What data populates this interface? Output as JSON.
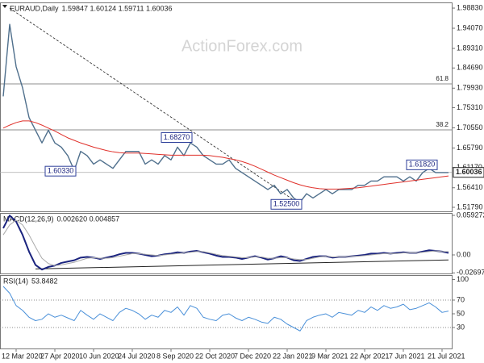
{
  "chart_data": [
    {
      "type": "line",
      "title": "EURAUD,Daily",
      "quote": "1.59847 1.60124 1.59711 1.60036",
      "watermark": "ActionForex.com",
      "categories": [
        null,
        null,
        "12 Mar 2020",
        null,
        null,
        null,
        null,
        null,
        "27 Apr 2020",
        null,
        null,
        null,
        null,
        null,
        "10 Jun 2020",
        null,
        null,
        null,
        null,
        null,
        "24 Jul 2020",
        null,
        null,
        null,
        null,
        null,
        "8 Sep 2020",
        null,
        null,
        null,
        null,
        null,
        "22 Oct 2020",
        null,
        null,
        null,
        null,
        null,
        "7 Dec 2020",
        null,
        null,
        null,
        null,
        null,
        "22 Jan 2021",
        null,
        null,
        null,
        null,
        null,
        "9 Mar 2021",
        null,
        null,
        null,
        null,
        null,
        "22 Apr 2021",
        null,
        null,
        null,
        null,
        null,
        "7 Jun 2021",
        null,
        null,
        null,
        null,
        null,
        "21 Jul 2021",
        null
      ],
      "series": [
        {
          "color": "#4f6f8c",
          "values": [
            1.78,
            1.95,
            1.85,
            1.8,
            1.73,
            1.7,
            1.67,
            1.7,
            1.67,
            1.66,
            1.64,
            1.605,
            1.65,
            1.64,
            1.62,
            1.63,
            1.62,
            1.61,
            1.63,
            1.65,
            1.65,
            1.65,
            1.62,
            1.63,
            1.62,
            1.64,
            1.63,
            1.66,
            1.64,
            1.67,
            1.66,
            1.64,
            1.63,
            1.62,
            1.62,
            1.63,
            1.61,
            1.6,
            1.59,
            1.58,
            1.57,
            1.56,
            1.57,
            1.55,
            1.56,
            1.54,
            1.53,
            1.55,
            1.54,
            1.55,
            1.56,
            1.55,
            1.56,
            1.56,
            1.56,
            1.57,
            1.57,
            1.58,
            1.58,
            1.59,
            1.59,
            1.59,
            1.58,
            1.59,
            1.58,
            1.6,
            1.61,
            1.6,
            1.6,
            1.6
          ]
        },
        {
          "color": "#e0302a",
          "values": [
            1.705,
            1.712,
            1.718,
            1.722,
            1.722,
            1.718,
            1.712,
            1.705,
            1.698,
            1.69,
            1.682,
            1.676,
            1.67,
            1.665,
            1.66,
            1.656,
            1.652,
            1.649,
            1.647,
            1.646,
            1.646,
            1.646,
            1.645,
            1.644,
            1.643,
            1.642,
            1.641,
            1.641,
            1.641,
            1.641,
            1.641,
            1.641,
            1.64,
            1.638,
            1.636,
            1.633,
            1.63,
            1.626,
            1.621,
            1.615,
            1.608,
            1.601,
            1.594,
            1.588,
            1.582,
            1.576,
            1.571,
            1.567,
            1.564,
            1.562,
            1.561,
            1.561,
            1.561,
            1.562,
            1.563,
            1.564,
            1.566,
            1.568,
            1.57,
            1.572,
            1.574,
            1.576,
            1.578,
            1.58,
            1.582,
            1.584,
            1.586,
            1.588,
            1.59,
            1.592
          ]
        }
      ],
      "ylim": [
        1.5084,
        2.0017
      ],
      "yticks": [
        {
          "value": 1.9883,
          "label": "1.98830"
        },
        {
          "value": 1.9407,
          "label": "1.94070"
        },
        {
          "value": 1.8931,
          "label": "1.89310"
        },
        {
          "value": 1.8469,
          "label": "1.84690"
        },
        {
          "value": 1.7993,
          "label": "1.79930"
        },
        {
          "value": 1.7531,
          "label": "1.75310"
        },
        {
          "value": 1.7055,
          "label": "1.70550"
        },
        {
          "value": 1.6579,
          "label": "1.65790"
        },
        {
          "value": 1.6117,
          "label": "1.61170"
        },
        {
          "value": 1.5641,
          "label": "1.56410"
        },
        {
          "value": 1.5179,
          "label": "1.51790"
        }
      ],
      "hlines": [
        {
          "value": 1.8093,
          "label": "61.8"
        },
        {
          "value": 1.7007,
          "label": "38.2"
        }
      ],
      "current": {
        "value": 1.60036,
        "label": "1.60036"
      },
      "trendline": [
        [
          1,
          1.988
        ],
        [
          46,
          1.525
        ]
      ],
      "annotations": [
        {
          "index": 29,
          "value": 1.6827,
          "label": "1.68270"
        },
        {
          "index": 11,
          "value": 1.6033,
          "label": "1.60330"
        },
        {
          "index": 46,
          "value": 1.525,
          "label": "1.52500"
        },
        {
          "index": 67,
          "value": 1.6182,
          "label": "1.61820"
        }
      ]
    },
    {
      "type": "line",
      "title": "MACD(12,26,9)",
      "quote": "0.002620 0.004857",
      "series": [
        {
          "color": "#1a237e",
          "values": [
            0.04,
            0.059,
            0.05,
            0.03,
            0.005,
            -0.015,
            -0.022,
            -0.018,
            -0.016,
            -0.012,
            -0.01,
            -0.008,
            -0.004,
            -0.003,
            -0.004,
            -0.006,
            -0.004,
            -0.002,
            0.001,
            0.003,
            0.003,
            0.002,
            0.0,
            -0.002,
            -0.001,
            0.001,
            0.002,
            0.004,
            0.003,
            0.005,
            0.006,
            0.004,
            0.002,
            -0.001,
            -0.003,
            -0.003,
            -0.004,
            -0.006,
            -0.004,
            -0.002,
            -0.004,
            -0.007,
            -0.005,
            -0.002,
            -0.004,
            -0.008,
            -0.009,
            -0.006,
            -0.003,
            -0.002,
            -0.002,
            -0.004,
            -0.003,
            -0.003,
            -0.002,
            -0.001,
            0.0,
            0.002,
            0.002,
            0.003,
            0.002,
            0.003,
            0.004,
            0.003,
            0.003,
            0.005,
            0.007,
            0.006,
            0.005,
            0.003
          ]
        },
        {
          "color": "#aaaaaa",
          "values": [
            0.03,
            0.045,
            0.052,
            0.045,
            0.03,
            0.012,
            -0.005,
            -0.013,
            -0.016,
            -0.015,
            -0.013,
            -0.011,
            -0.008,
            -0.005,
            -0.004,
            -0.005,
            -0.005,
            -0.004,
            -0.002,
            0.0,
            0.002,
            0.002,
            0.001,
            0.0,
            -0.001,
            0.0,
            0.001,
            0.002,
            0.003,
            0.004,
            0.005,
            0.005,
            0.003,
            0.001,
            -0.001,
            -0.002,
            -0.003,
            -0.004,
            -0.004,
            -0.003,
            -0.003,
            -0.005,
            -0.005,
            -0.004,
            -0.004,
            -0.006,
            -0.007,
            -0.007,
            -0.005,
            -0.003,
            -0.002,
            -0.003,
            -0.003,
            -0.003,
            -0.002,
            -0.002,
            -0.001,
            0.0,
            0.001,
            0.002,
            0.002,
            0.002,
            0.003,
            0.003,
            0.003,
            0.004,
            0.005,
            0.006,
            0.005,
            0.005
          ]
        }
      ],
      "ylim": [
        -0.0278,
        0.0629
      ],
      "yticks": [
        0.059272,
        {
          "value": 0,
          "label": "0.00"
        },
        -0.026978
      ],
      "trendline": [
        [
          5,
          -0.021
        ],
        [
          69,
          -0.0075
        ]
      ]
    },
    {
      "type": "line",
      "title": "RSI(14)",
      "quote": "53.8482",
      "series": [
        {
          "color": "#4a90d9",
          "values": [
            90,
            80,
            62,
            55,
            45,
            40,
            42,
            50,
            45,
            48,
            44,
            40,
            55,
            48,
            42,
            50,
            45,
            40,
            52,
            58,
            55,
            50,
            42,
            48,
            45,
            55,
            52,
            60,
            48,
            62,
            58,
            45,
            42,
            40,
            48,
            50,
            44,
            40,
            45,
            42,
            38,
            36,
            45,
            42,
            35,
            30,
            25,
            40,
            45,
            48,
            50,
            45,
            52,
            50,
            48,
            55,
            52,
            60,
            55,
            62,
            58,
            60,
            64,
            56,
            58,
            62,
            66,
            60,
            52,
            54
          ]
        }
      ],
      "ylim": [
        -0.6,
        106.5
      ],
      "yticks": [
        100,
        70,
        50,
        30
      ],
      "levels": [
        70,
        30
      ]
    }
  ]
}
